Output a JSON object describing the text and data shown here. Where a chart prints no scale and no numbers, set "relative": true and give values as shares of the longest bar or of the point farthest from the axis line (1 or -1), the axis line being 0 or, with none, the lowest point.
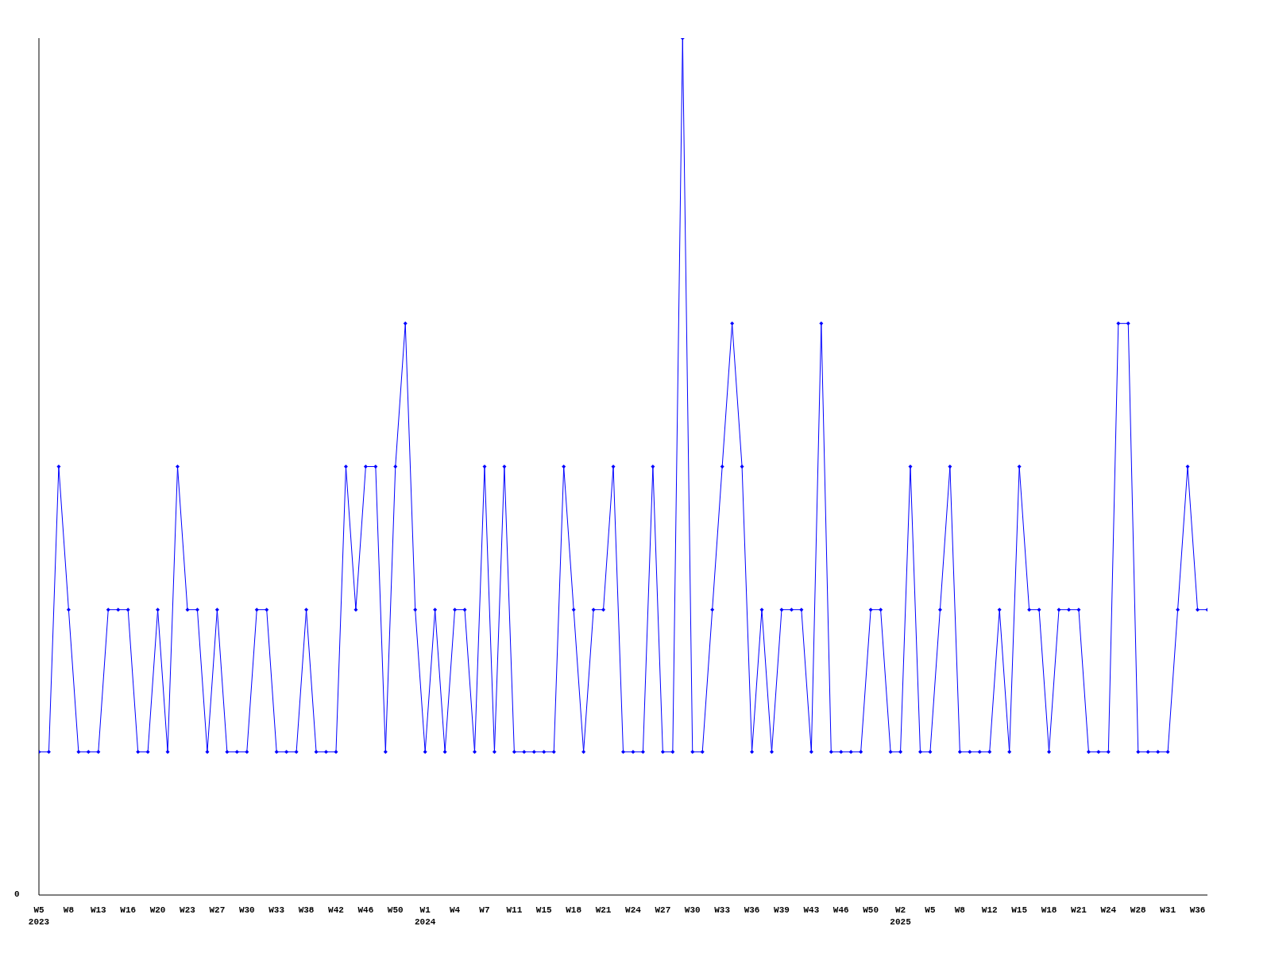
{
  "chart_data": {
    "type": "line",
    "relative": true,
    "marker": "diamond",
    "line_style": "solid",
    "grid": false,
    "legend": false,
    "annotations": [
      "0"
    ],
    "categories": [
      "W5\n2023",
      null,
      null,
      "W8",
      null,
      null,
      "W13",
      null,
      null,
      "W16",
      null,
      null,
      "W20",
      null,
      null,
      "W23",
      null,
      null,
      "W27",
      null,
      null,
      "W30",
      null,
      null,
      "W33",
      null,
      null,
      "W38",
      null,
      null,
      "W42",
      null,
      null,
      "W46",
      null,
      null,
      "W50",
      null,
      null,
      "W1\n2024",
      null,
      null,
      "W4",
      null,
      null,
      "W7",
      null,
      null,
      "W11",
      null,
      null,
      "W15",
      null,
      null,
      "W18",
      null,
      null,
      "W21",
      null,
      null,
      "W24",
      null,
      null,
      "W27",
      null,
      null,
      "W30",
      null,
      null,
      "W33",
      null,
      null,
      "W36",
      null,
      null,
      "W39",
      null,
      null,
      "W43",
      null,
      null,
      "W46",
      null,
      null,
      "W50",
      null,
      null,
      "W2\n2025",
      null,
      null,
      "W5",
      null,
      null,
      "W8",
      null,
      null,
      "W12",
      null,
      null,
      "W15",
      null,
      null,
      "W18",
      null,
      null,
      "W21",
      null,
      null,
      "W24",
      null,
      null,
      "W28",
      null,
      null,
      "W31",
      null,
      null,
      "W36",
      null
    ],
    "series": [
      {
        "color": "#0000ff",
        "values": [
          0.167,
          0.167,
          0.5,
          0.333,
          0.167,
          0.167,
          0.167,
          0.333,
          0.333,
          0.333,
          0.167,
          0.167,
          0.333,
          0.167,
          0.5,
          0.333,
          0.333,
          0.167,
          0.333,
          0.167,
          0.167,
          0.167,
          0.333,
          0.333,
          0.167,
          0.167,
          0.167,
          0.333,
          0.167,
          0.167,
          0.167,
          0.5,
          0.333,
          0.5,
          0.5,
          0.167,
          0.5,
          0.667,
          0.333,
          0.167,
          0.333,
          0.167,
          0.333,
          0.333,
          0.167,
          0.5,
          0.167,
          0.5,
          0.167,
          0.167,
          0.167,
          0.167,
          0.167,
          0.5,
          0.333,
          0.167,
          0.333,
          0.333,
          0.5,
          0.167,
          0.167,
          0.167,
          0.5,
          0.167,
          0.167,
          1,
          0.167,
          0.167,
          0.333,
          0.5,
          0.667,
          0.5,
          0.167,
          0.333,
          0.167,
          0.333,
          0.333,
          0.333,
          0.167,
          0.667,
          0.167,
          0.167,
          0.167,
          0.167,
          0.333,
          0.333,
          0.167,
          0.167,
          0.5,
          0.167,
          0.167,
          0.333,
          0.5,
          0.167,
          0.167,
          0.167,
          0.167,
          0.333,
          0.167,
          0.5,
          0.333,
          0.333,
          0.167,
          0.333,
          0.333,
          0.333,
          0.167,
          0.167,
          0.167,
          0.667,
          0.667,
          0.167,
          0.167,
          0.167,
          0.167,
          0.333,
          0.5,
          0.333,
          0.333
        ]
      }
    ]
  }
}
